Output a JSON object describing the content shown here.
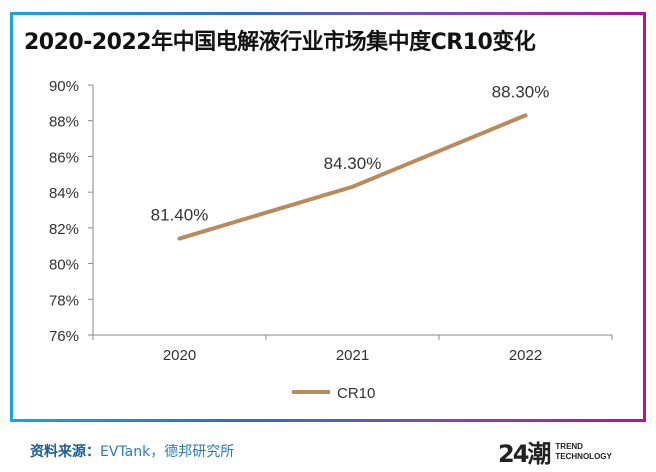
{
  "chart_data": {
    "type": "line",
    "title": "2020-2022年中国电解液行业市场集中度CR10变化",
    "categories": [
      "2020",
      "2021",
      "2022"
    ],
    "series": [
      {
        "name": "CR10",
        "values": [
          81.4,
          84.3,
          88.3
        ],
        "labels": [
          "81.40%",
          "84.30%",
          "88.30%"
        ],
        "color": "#b98a5c"
      }
    ],
    "ylim": [
      76,
      90
    ],
    "yticks": [
      76,
      78,
      80,
      82,
      84,
      86,
      88,
      90
    ],
    "ytick_labels": [
      "76%",
      "78%",
      "80%",
      "82%",
      "84%",
      "86%",
      "88%",
      "90%"
    ],
    "xlabel": "",
    "ylabel": "",
    "grid": false,
    "legend": "bottom-center"
  },
  "footer": {
    "source_label": "资料来源：",
    "source_text": "EVTank，德邦研究所"
  },
  "logo": {
    "mark": "24潮",
    "line1": "TREND",
    "line2": "TECHNOLOGY"
  }
}
